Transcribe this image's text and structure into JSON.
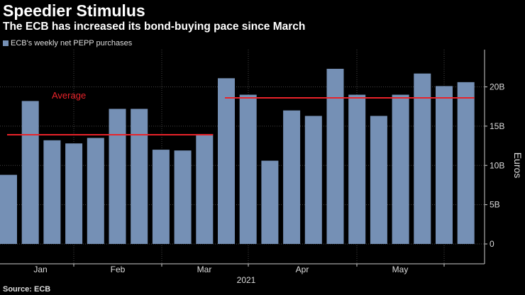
{
  "title": "Speedier Stimulus",
  "subtitle": "The ECB has increased its bond-buying pace since March",
  "source": "Source: ECB",
  "chart_data": {
    "type": "bar",
    "legend": "ECB's weekly net PEPP purchases",
    "ylabel": "Euros",
    "xlabel": "2021",
    "ylim": [
      0,
      24
    ],
    "yticks": [
      0,
      5,
      10,
      15,
      20
    ],
    "ytick_labels": [
      "0",
      "5B",
      "10B",
      "15B",
      "20B"
    ],
    "month_labels": [
      "Jan",
      "Feb",
      "Mar",
      "Apr",
      "May"
    ],
    "values": [
      8.8,
      18.2,
      13.2,
      12.8,
      13.5,
      17.2,
      17.2,
      12.0,
      11.9,
      14.0,
      21.1,
      19.0,
      10.6,
      17.0,
      16.3,
      22.3,
      19.0,
      16.3,
      19.0,
      21.7,
      20.1,
      20.6
    ],
    "averages": [
      {
        "label": "Average",
        "value": 13.9,
        "from_bar": 0,
        "to_bar": 9
      },
      {
        "value": 18.6,
        "from_bar": 10,
        "to_bar": 21
      }
    ],
    "colors": {
      "bar": "#7590b5",
      "average": "#e8232a"
    }
  }
}
